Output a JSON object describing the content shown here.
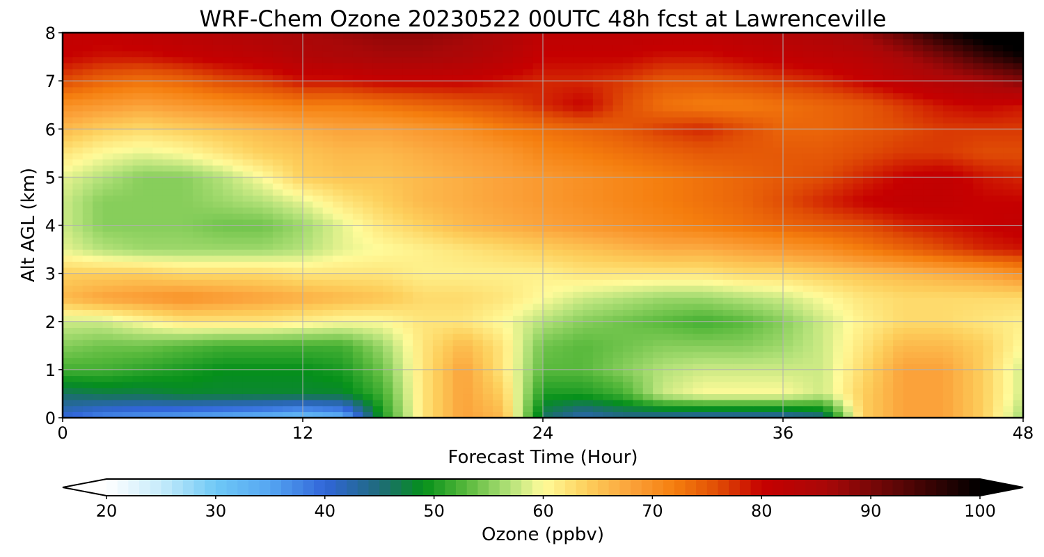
{
  "chart_data": {
    "type": "heatmap",
    "title": "WRF-Chem Ozone  20230522 00UTC 48h fcst at Lawrenceville",
    "xlabel": "Forecast Time (Hour)",
    "ylabel": "Alt AGL (km)",
    "xlim": [
      0,
      48
    ],
    "ylim": [
      0,
      8
    ],
    "x_ticks": [
      0,
      12,
      24,
      36,
      48
    ],
    "y_ticks": [
      0,
      1,
      2,
      3,
      4,
      5,
      6,
      7,
      8
    ],
    "grid": true,
    "x": [
      0,
      2,
      4,
      6,
      8,
      10,
      12,
      14,
      16,
      18,
      20,
      22,
      24,
      26,
      28,
      30,
      32,
      34,
      36,
      38,
      40,
      42,
      44,
      46,
      48
    ],
    "y": [
      0,
      0.5,
      1,
      1.5,
      2,
      2.5,
      3,
      3.5,
      4,
      4.5,
      5,
      5.5,
      6,
      6.5,
      7,
      7.5,
      8
    ],
    "z": [
      [
        40,
        37,
        36,
        35,
        34,
        33,
        31,
        33,
        50,
        62,
        68,
        66,
        46,
        42,
        44,
        43,
        42,
        42,
        42,
        44,
        64,
        68,
        68,
        64,
        56
      ],
      [
        46,
        47,
        47,
        48,
        48,
        48,
        48,
        48,
        52,
        62,
        68,
        64,
        50,
        50,
        52,
        58,
        60,
        60,
        60,
        58,
        64,
        68,
        68,
        64,
        58
      ],
      [
        52,
        52,
        51,
        50,
        49,
        49,
        49,
        50,
        54,
        62,
        68,
        62,
        53,
        53,
        55,
        57,
        58,
        58,
        58,
        58,
        63,
        68,
        68,
        64,
        58
      ],
      [
        55,
        54,
        54,
        53,
        52,
        52,
        52,
        52,
        56,
        62,
        66,
        62,
        54,
        53,
        54,
        55,
        55,
        55,
        56,
        58,
        62,
        66,
        66,
        64,
        60
      ],
      [
        58,
        58,
        60,
        62,
        62,
        62,
        61,
        60,
        60,
        62,
        62,
        60,
        57,
        55,
        54,
        53,
        52,
        53,
        55,
        58,
        61,
        63,
        63,
        62,
        61
      ],
      [
        66,
        68,
        69,
        70,
        69,
        68,
        67,
        66,
        65,
        63,
        63,
        62,
        60,
        58,
        57,
        56,
        56,
        57,
        58,
        60,
        62,
        63,
        63,
        63,
        63
      ],
      [
        64,
        64,
        64,
        63,
        63,
        63,
        62,
        62,
        62,
        61,
        61,
        61,
        61,
        62,
        62,
        62,
        62,
        63,
        63,
        64,
        65,
        66,
        67,
        68,
        70
      ],
      [
        59,
        57,
        56,
        56,
        56,
        56,
        57,
        59,
        60,
        61,
        62,
        63,
        64,
        65,
        66,
        67,
        67,
        68,
        69,
        70,
        72,
        74,
        76,
        78,
        79
      ],
      [
        58,
        55,
        55,
        55,
        54,
        54,
        56,
        59,
        62,
        64,
        66,
        67,
        68,
        69,
        70,
        71,
        72,
        73,
        74,
        75,
        76,
        78,
        79,
        80,
        81
      ],
      [
        58,
        55,
        55,
        55,
        56,
        57,
        59,
        62,
        64,
        66,
        67,
        68,
        69,
        70,
        71,
        72,
        73,
        74,
        76,
        78,
        80,
        81,
        81,
        80,
        80
      ],
      [
        59,
        57,
        55,
        55,
        57,
        60,
        64,
        65,
        65,
        66,
        67,
        68,
        69,
        70,
        71,
        72,
        73,
        74,
        75,
        76,
        78,
        80,
        81,
        79,
        78
      ],
      [
        62,
        60,
        59,
        60,
        62,
        64,
        65,
        66,
        66,
        67,
        68,
        69,
        71,
        72,
        73,
        74,
        75,
        75,
        75,
        75,
        76,
        77,
        77,
        76,
        76
      ],
      [
        66,
        64,
        63,
        64,
        65,
        66,
        67,
        68,
        68,
        69,
        70,
        72,
        73,
        74,
        75,
        77,
        78,
        76,
        74,
        74,
        75,
        76,
        77,
        77,
        77
      ],
      [
        70,
        69,
        68,
        69,
        70,
        71,
        72,
        72,
        73,
        74,
        75,
        76,
        78,
        80,
        76,
        73,
        72,
        72,
        73,
        74,
        75,
        77,
        79,
        80,
        79
      ],
      [
        76,
        74,
        73,
        74,
        76,
        77,
        79,
        79,
        80,
        80,
        80,
        79,
        78,
        78,
        77,
        75,
        75,
        76,
        77,
        78,
        80,
        82,
        84,
        86,
        89
      ],
      [
        80,
        79,
        79,
        80,
        81,
        82,
        84,
        85,
        86,
        86,
        85,
        83,
        80,
        80,
        80,
        79,
        79,
        80,
        81,
        82,
        83,
        86,
        90,
        95,
        99
      ],
      [
        81,
        81,
        82,
        83,
        84,
        85,
        86,
        87,
        88,
        88,
        87,
        85,
        82,
        82,
        82,
        82,
        82,
        83,
        84,
        85,
        87,
        92,
        98,
        102,
        104
      ]
    ],
    "colorbar": {
      "label": "Ozone  (ppbv)",
      "min": 20,
      "max": 100,
      "ticks": [
        20,
        30,
        40,
        50,
        60,
        70,
        80,
        90,
        100
      ],
      "extend": "both",
      "stops": [
        {
          "v": 20,
          "color": "#ffffff"
        },
        {
          "v": 25,
          "color": "#c6ebfa"
        },
        {
          "v": 30,
          "color": "#6fc8f6"
        },
        {
          "v": 35,
          "color": "#55a5f1"
        },
        {
          "v": 40,
          "color": "#3166d9"
        },
        {
          "v": 45,
          "color": "#1f6a7a"
        },
        {
          "v": 49,
          "color": "#05901a"
        },
        {
          "v": 53,
          "color": "#58b93c"
        },
        {
          "v": 57,
          "color": "#b5e27a"
        },
        {
          "v": 60,
          "color": "#fffb9a"
        },
        {
          "v": 64,
          "color": "#fdcf5c"
        },
        {
          "v": 68,
          "color": "#fba23a"
        },
        {
          "v": 72,
          "color": "#f57e0e"
        },
        {
          "v": 76,
          "color": "#e04d05"
        },
        {
          "v": 80,
          "color": "#c60000"
        },
        {
          "v": 86,
          "color": "#a80808"
        },
        {
          "v": 92,
          "color": "#620606"
        },
        {
          "v": 100,
          "color": "#000000"
        }
      ]
    }
  }
}
